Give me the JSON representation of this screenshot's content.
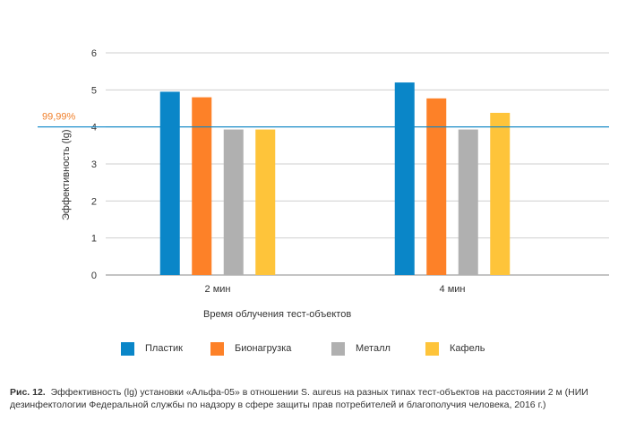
{
  "chart_data": {
    "type": "bar",
    "categories": [
      "2 мин",
      "4 мин"
    ],
    "series": [
      {
        "name": "Пластик",
        "color": "#0a86c8",
        "values": [
          4.95,
          5.2
        ]
      },
      {
        "name": "Бионагрузка",
        "color": "#fd8128",
        "values": [
          4.8,
          4.77
        ]
      },
      {
        "name": "Металл",
        "color": "#b0b0b0",
        "values": [
          3.93,
          3.93
        ]
      },
      {
        "name": "Кафель",
        "color": "#fec43a",
        "values": [
          3.93,
          4.38
        ]
      }
    ],
    "xlabel": "Время облучения тест-объектов",
    "ylabel": "Эффективность (lg)",
    "ylim": [
      0,
      6
    ],
    "yticks": [
      0,
      1,
      2,
      3,
      4,
      5,
      6
    ],
    "grid": true,
    "legend_position": "bottom",
    "reference_line": {
      "value": 4,
      "label": "99,99%",
      "color": "#0a86c8",
      "label_color": "#f07f2a"
    }
  },
  "caption": {
    "label": "Рис. 12.",
    "text": "Эффективность (lg) установки «Альфа-05» в отношении S. aureus на разных типах тест-объектов на расстоянии 2 м (НИИ дезинфектологии Федеральной службы по надзору в сфере защиты прав потребителей и благополучия человека, 2016 г.)"
  }
}
